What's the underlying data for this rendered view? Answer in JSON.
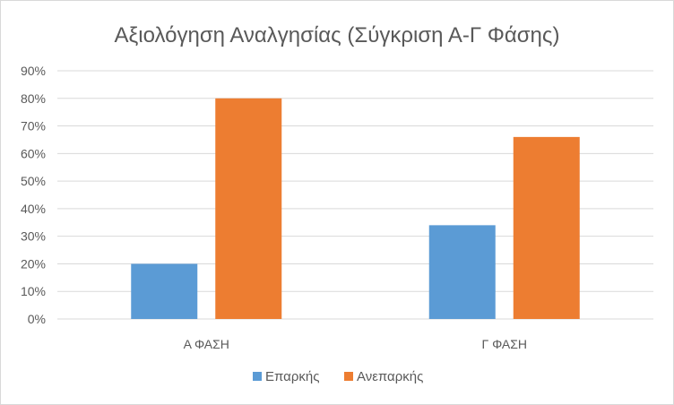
{
  "chart_data": {
    "type": "bar",
    "title": "Αξιολόγηση Αναλγησίας (Σύγκριση Α-Γ Φάσης)",
    "categories": [
      "Α ΦΑΣΗ",
      "Γ ΦΑΣΗ"
    ],
    "series": [
      {
        "name": "Επαρκής",
        "values": [
          20,
          34
        ],
        "color": "#5b9bd5"
      },
      {
        "name": "Ανεπαρκής",
        "values": [
          80,
          66
        ],
        "color": "#ed7d31"
      }
    ],
    "ylim": [
      0,
      90
    ],
    "yticks": [
      0,
      10,
      20,
      30,
      40,
      50,
      60,
      70,
      80,
      90
    ],
    "ytick_format": "{v}%",
    "grid": true,
    "legend": "bottom",
    "xlabel": "",
    "ylabel": ""
  }
}
